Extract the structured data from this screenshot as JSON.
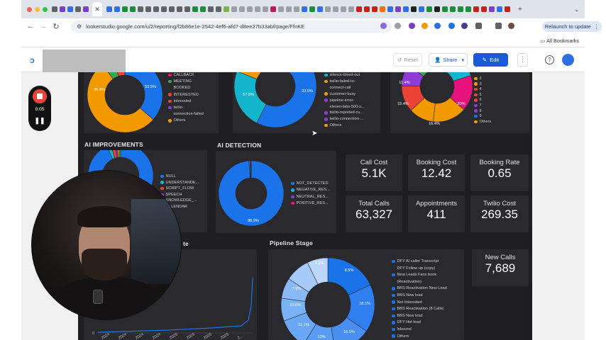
{
  "browser": {
    "url": "lookerstudio.google.com/u/2/reporting/f2b86e1e-2542-4ef6-afd7-d8ee27b33abf/page/FfnKE",
    "relaunch_label": "Relaunch to update",
    "all_bookmarks_label": "All Bookmarks"
  },
  "header": {
    "reset_label": "Reset",
    "share_label": "Share",
    "edit_label": "Edit"
  },
  "recorder": {
    "time": "0:05"
  },
  "colors": {
    "blue": "#1a73e8",
    "orange": "#f29900",
    "green": "#34a853",
    "red": "#ea4335",
    "purple": "#8e3bd8",
    "cyan": "#12b5cb",
    "pink": "#e8127d",
    "light_blue": "#8ab4f8"
  },
  "charts": {
    "call_outcome": {
      "slice_labels": [
        "36.4%",
        "53.5%"
      ],
      "legend": [
        "CALLBACK",
        "MEETING",
        "BOOKED",
        "INTERESTED",
        "Interested",
        "twilio-",
        "connection-failed",
        "Others"
      ]
    },
    "end_reason": {
      "slice_labels": [
        "23.5%",
        "57.5%"
      ],
      "legend": [
        "silence-timed-out",
        "twilio-failed-to-",
        "connect-call",
        "customer-busy",
        "pipeline-error-",
        "eleven-labs-500-s...",
        "twilio-reported-cu...",
        "twilio-connection-...",
        "Others"
      ]
    },
    "numbers": {
      "slice_labels": [
        "11.4%",
        "15.4%",
        "16.4%",
        "20%"
      ],
      "legend": [
        "2",
        "3",
        "4",
        "5",
        "6",
        "7",
        "8",
        "9",
        "Others"
      ]
    },
    "ai_improvements": {
      "title": "AI IMPROVEMENTS",
      "legend": [
        "NULL",
        "UNDERSTANDE...",
        "SCRIPT_FLOW",
        "SPEECH",
        "KNOWLEDGE_...",
        "CALENDAR"
      ]
    },
    "ai_detection": {
      "title": "AI DETECTION",
      "slice_labels": [
        "98.9%"
      ],
      "legend": [
        "NOT_DETECTED",
        "NEGATIVE_RES...",
        "NEUTRAL_RES...",
        "POSITIVE_RES..."
      ]
    },
    "trend": {
      "title_fragment": "te",
      "y_ticks": [
        "5",
        "0"
      ],
      "x_ticks": [
        "2024",
        "2024",
        "2024",
        "2024",
        "2025",
        "2025",
        "2025",
        "2025",
        "2..."
      ]
    },
    "pipeline_stage": {
      "title": "Pipeline Stage",
      "slice_labels": [
        "8.5%",
        "18.1%",
        "16.5%",
        "13%",
        "11.1%",
        "10.6%",
        "7.9%",
        "7.1%"
      ],
      "legend": [
        "DFY AI caller Transcript",
        "DFY Follow up (copy)",
        "New Leads Face book",
        "(Reactivation)",
        "BBS Reactivation New Lead",
        "BBS New lead",
        "Not Interested",
        "BBS Reactivation (8 Calls)",
        "BBS New lead",
        "DFY Hot lead",
        "Inbound",
        "Others"
      ]
    }
  },
  "kpis": [
    {
      "label": "Call Cost",
      "value": "5.1K"
    },
    {
      "label": "Booking Cost",
      "value": "12.42"
    },
    {
      "label": "Booking Rate",
      "value": "0.65"
    },
    {
      "label": "Total Calls",
      "value": "63,327"
    },
    {
      "label": "Appointments",
      "value": "411"
    },
    {
      "label": "Twilio Cost",
      "value": "269.35"
    },
    {
      "label": "New Calls",
      "value": "7,689"
    }
  ]
}
